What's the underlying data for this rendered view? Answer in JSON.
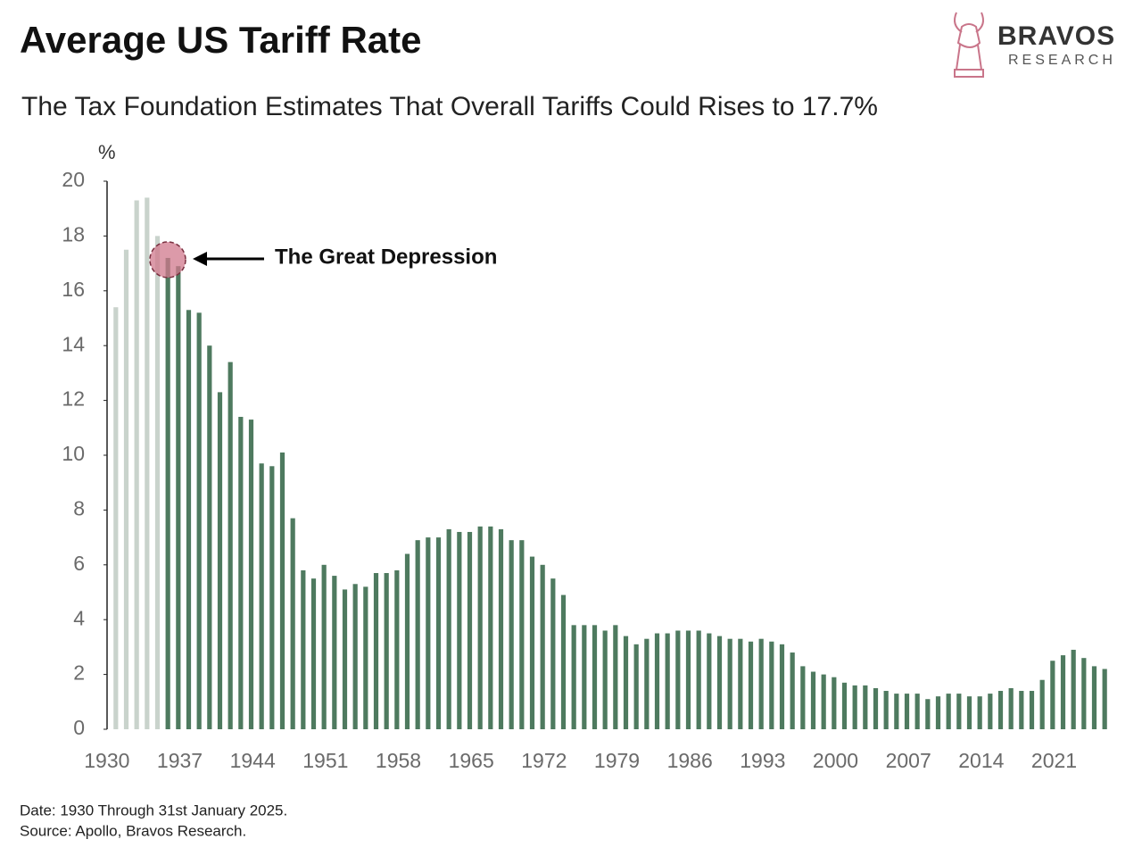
{
  "chart_data": {
    "type": "bar",
    "title": "Average US Tariff Rate",
    "subtitle": "The Tax Foundation Estimates That Overall Tariffs Could Rises to 17.7%",
    "y_label": "%",
    "annotation": "The Great Depression",
    "note": "Date: 1930 Through 31st January 2025.",
    "source": "Source: Apollo, Bravos Research.",
    "brand": "BRAVOS",
    "brand_sub": "RESEARCH",
    "xlim": [
      1929.5,
      2025.5
    ],
    "xticks": [
      1930,
      1937,
      1944,
      1951,
      1958,
      1965,
      1972,
      1979,
      1986,
      1993,
      2000,
      2007,
      2014,
      2021
    ],
    "ylim": [
      0,
      20
    ],
    "yticks": [
      0,
      2,
      4,
      6,
      8,
      10,
      12,
      14,
      16,
      18,
      20
    ],
    "x": [
      1930,
      1931,
      1932,
      1933,
      1934,
      1935,
      1936,
      1937,
      1938,
      1939,
      1940,
      1941,
      1942,
      1943,
      1944,
      1945,
      1946,
      1947,
      1948,
      1949,
      1950,
      1951,
      1952,
      1953,
      1954,
      1955,
      1956,
      1957,
      1958,
      1959,
      1960,
      1961,
      1962,
      1963,
      1964,
      1965,
      1966,
      1967,
      1968,
      1969,
      1970,
      1971,
      1972,
      1973,
      1974,
      1975,
      1976,
      1977,
      1978,
      1979,
      1980,
      1981,
      1982,
      1983,
      1984,
      1985,
      1986,
      1987,
      1988,
      1989,
      1990,
      1991,
      1992,
      1993,
      1994,
      1995,
      1996,
      1997,
      1998,
      1999,
      2000,
      2001,
      2002,
      2003,
      2004,
      2005,
      2006,
      2007,
      2008,
      2009,
      2010,
      2011,
      2012,
      2013,
      2014,
      2015,
      2016,
      2017,
      2018,
      2019,
      2020,
      2021,
      2022,
      2023,
      2024,
      2025
    ],
    "series": [
      {
        "color": "#c9d3cc",
        "values": [
          15.4,
          17.5,
          19.3,
          19.4,
          18.0,
          null,
          null,
          null,
          null,
          null,
          null,
          null,
          null,
          null,
          null,
          null,
          null,
          null,
          null,
          null,
          null,
          null,
          null,
          null,
          null,
          null,
          null,
          null,
          null,
          null,
          null,
          null,
          null,
          null,
          null,
          null,
          null,
          null,
          null,
          null,
          null,
          null,
          null,
          null,
          null,
          null,
          null,
          null,
          null,
          null,
          null,
          null,
          null,
          null,
          null,
          null,
          null,
          null,
          null,
          null,
          null,
          null,
          null,
          null,
          null,
          null,
          null,
          null,
          null,
          null,
          null,
          null,
          null,
          null,
          null,
          null,
          null,
          null,
          null,
          null,
          null,
          null,
          null,
          null,
          null,
          null,
          null,
          null,
          null,
          null,
          null,
          null,
          null,
          null,
          null,
          null
        ]
      },
      {
        "color": "#4e7a5f",
        "values": [
          null,
          null,
          null,
          null,
          null,
          17.2,
          16.9,
          15.3,
          15.2,
          14.0,
          12.3,
          13.4,
          11.4,
          11.3,
          9.7,
          9.6,
          10.1,
          7.7,
          5.8,
          5.5,
          6.0,
          5.6,
          5.1,
          5.3,
          5.2,
          5.7,
          5.7,
          5.8,
          6.4,
          6.9,
          7.0,
          7.0,
          7.3,
          7.2,
          7.2,
          7.4,
          7.4,
          7.3,
          6.9,
          6.9,
          6.3,
          6.0,
          5.5,
          4.9,
          3.8,
          3.8,
          3.8,
          3.6,
          3.8,
          3.4,
          3.1,
          3.3,
          3.5,
          3.5,
          3.6,
          3.6,
          3.6,
          3.5,
          3.4,
          3.3,
          3.3,
          3.2,
          3.3,
          3.2,
          3.1,
          2.8,
          2.3,
          2.1,
          2.0,
          1.9,
          1.7,
          1.6,
          1.6,
          1.5,
          1.4,
          1.3,
          1.3,
          1.3,
          1.1,
          1.2,
          1.3,
          1.3,
          1.2,
          1.2,
          1.3,
          1.4,
          1.5,
          1.4,
          1.4,
          1.8,
          2.5,
          2.7,
          2.9,
          2.6,
          2.3,
          2.2
        ]
      }
    ]
  }
}
